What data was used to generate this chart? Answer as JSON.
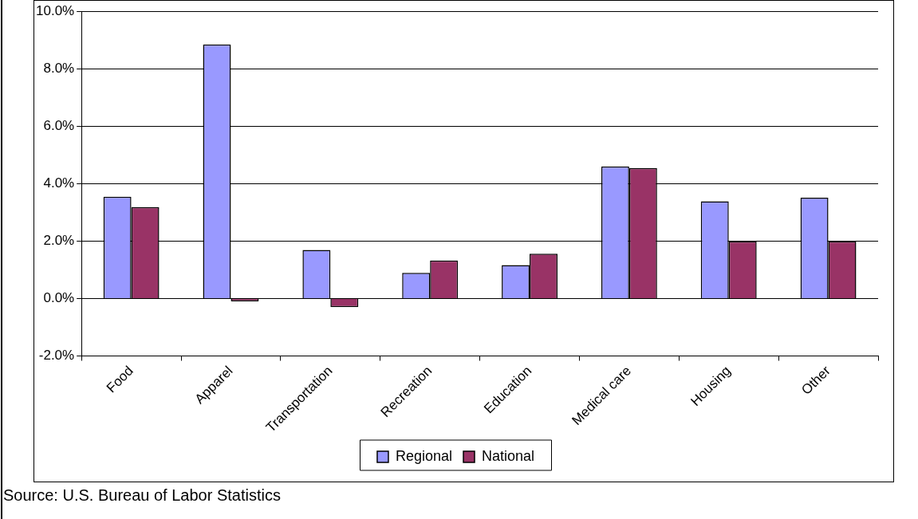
{
  "chart_data": {
    "type": "bar",
    "categories": [
      "Food",
      "Apparel",
      "Transportation",
      "Recreation",
      "Education",
      "Medical care",
      "Housing",
      "Other"
    ],
    "series": [
      {
        "name": "Regional",
        "color": "#9999ff",
        "values": [
          3.54,
          8.84,
          1.69,
          0.89,
          1.16,
          4.6,
          3.38,
          3.51
        ]
      },
      {
        "name": "National",
        "color": "#993366",
        "values": [
          3.18,
          -0.1,
          -0.3,
          1.32,
          1.56,
          4.54,
          1.99,
          1.99
        ]
      }
    ],
    "ylim": [
      -2,
      10
    ],
    "yticks": [
      {
        "value": -2,
        "label": "-2.0%"
      },
      {
        "value": 0,
        "label": "0.0%"
      },
      {
        "value": 2,
        "label": "2.0%"
      },
      {
        "value": 4,
        "label": "4.0%"
      },
      {
        "value": 6,
        "label": "6.0%"
      },
      {
        "value": 8,
        "label": "8.0%"
      },
      {
        "value": 10,
        "label": "10.0%"
      }
    ],
    "grid": "y",
    "legend": "bottom",
    "annotations": [
      "Source: U.S. Bureau of Labor Statistics"
    ]
  }
}
